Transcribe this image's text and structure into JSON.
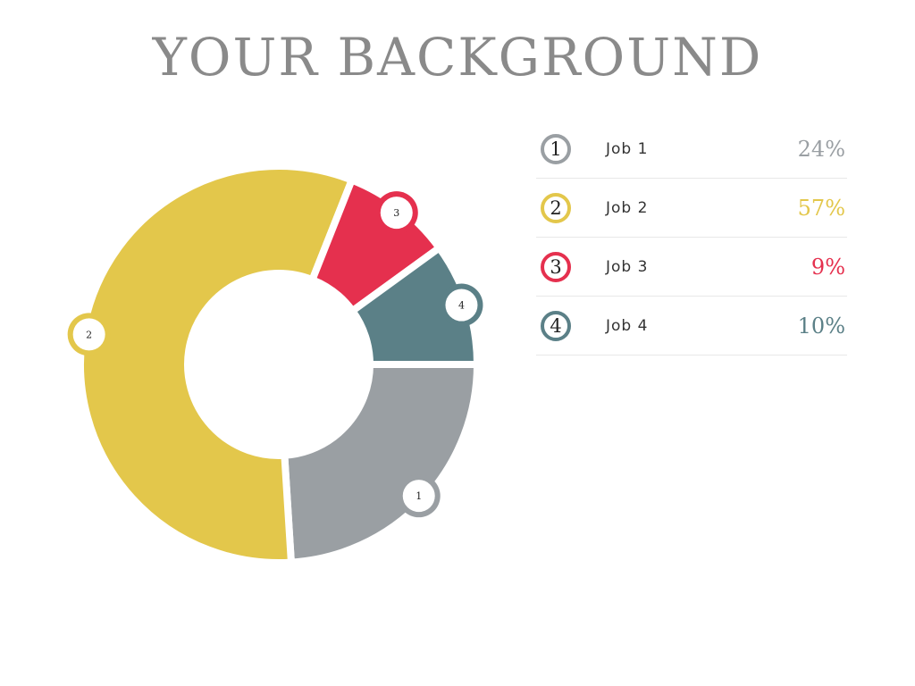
{
  "title": "YOUR BACKGROUND",
  "chart_data": {
    "type": "pie",
    "variant": "donut",
    "categories": [
      "Job 1",
      "Job 2",
      "Job 3",
      "Job 4"
    ],
    "markers": [
      "1",
      "2",
      "3",
      "4"
    ],
    "values": [
      24,
      57,
      9,
      10
    ],
    "value_labels": [
      "24%",
      "57%",
      "9%",
      "10%"
    ],
    "colors": [
      "#9a9fa3",
      "#e3c74b",
      "#e5304e",
      "#5b8087"
    ],
    "legend": "right"
  }
}
